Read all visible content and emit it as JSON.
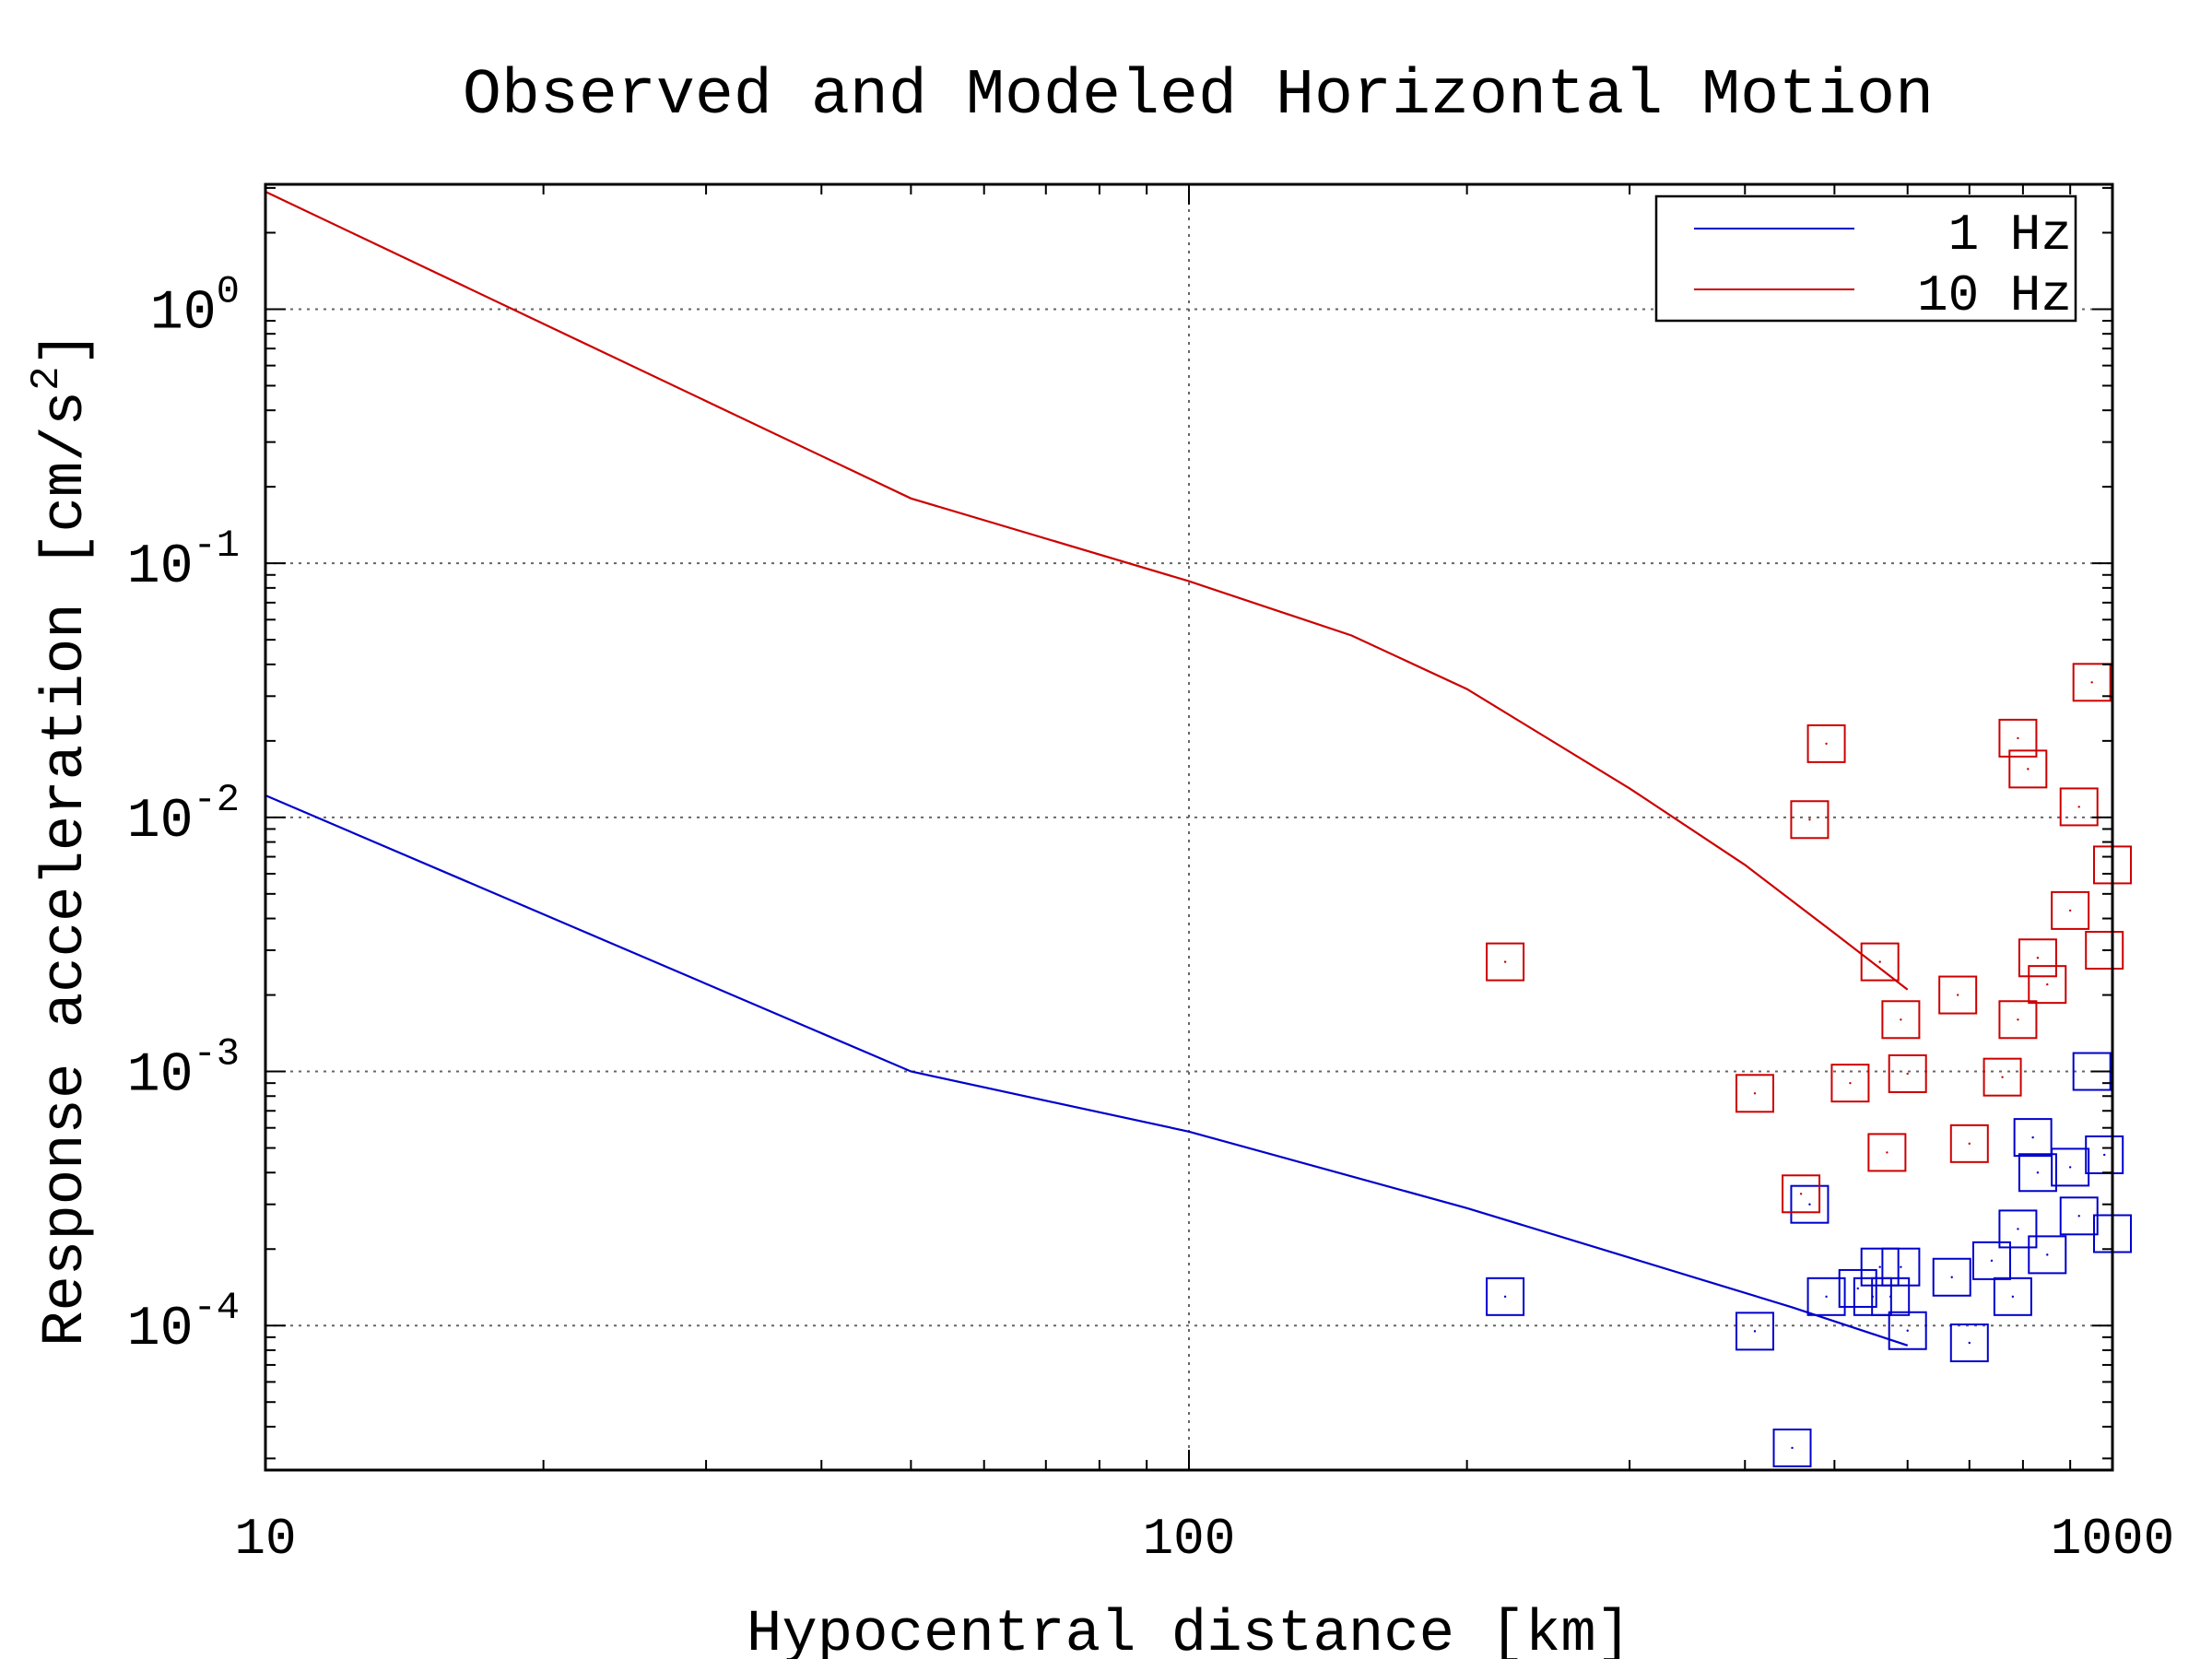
{
  "chart_data": {
    "type": "line",
    "title": "Observed and Modeled Horizontal Motion",
    "xlabel": "Hypocentral distance [km]",
    "ylabel_text": "Response acceleration [cm/s",
    "ylabel_sup": "2",
    "ylabel_close": "]",
    "x_scale": "log",
    "y_scale": "log",
    "xlim": [
      10,
      1000
    ],
    "ylim": [
      2.7e-05,
      3.1
    ],
    "grid": true,
    "legend_placement": "top-right",
    "x_ticks": [
      {
        "value": 10,
        "label": "10"
      },
      {
        "value": 100,
        "label": "100"
      },
      {
        "value": 1000,
        "label": "1000"
      }
    ],
    "y_ticks": [
      {
        "value": 1,
        "base": "10",
        "exp": "0"
      },
      {
        "value": 0.1,
        "base": "10",
        "exp": "-1"
      },
      {
        "value": 0.01,
        "base": "10",
        "exp": "-2"
      },
      {
        "value": 0.001,
        "base": "10",
        "exp": "-3"
      },
      {
        "value": 0.0001,
        "base": "10",
        "exp": "-4"
      }
    ],
    "series": [
      {
        "name": "1 Hz",
        "color": "#0000cc",
        "line": [
          [
            10,
            0.0122
          ],
          [
            50,
            0.001
          ],
          [
            100,
            0.00058
          ],
          [
            200,
            0.00029
          ],
          [
            300,
            0.000185
          ],
          [
            450,
            0.000118
          ],
          [
            600,
            8.35e-05
          ]
        ],
        "observed": [
          [
            220,
            0.00013
          ],
          [
            410,
            9.5e-05
          ],
          [
            450,
            3.3e-05
          ],
          [
            470,
            0.0003
          ],
          [
            490,
            0.00013
          ],
          [
            530,
            0.00014
          ],
          [
            550,
            0.00013
          ],
          [
            560,
            0.00017
          ],
          [
            575,
            0.00013
          ],
          [
            590,
            0.00017
          ],
          [
            600,
            9.55e-05
          ],
          [
            670,
            0.000155
          ],
          [
            700,
            8.55e-05
          ],
          [
            740,
            0.00018
          ],
          [
            780,
            0.00013
          ],
          [
            790,
            0.00024
          ],
          [
            820,
            0.00055
          ],
          [
            830,
            0.0004
          ],
          [
            850,
            0.00019
          ],
          [
            900,
            0.00042
          ],
          [
            920,
            0.00027
          ],
          [
            950,
            0.001
          ],
          [
            980,
            0.00047
          ],
          [
            1000,
            0.00023
          ]
        ]
      },
      {
        "name": "10 Hz",
        "color": "#cc0000",
        "line": [
          [
            10,
            2.9
          ],
          [
            50,
            0.18
          ],
          [
            100,
            0.085
          ],
          [
            150,
            0.052
          ],
          [
            200,
            0.032
          ],
          [
            300,
            0.013
          ],
          [
            400,
            0.0065
          ],
          [
            500,
            0.0035
          ],
          [
            600,
            0.0021
          ]
        ],
        "observed": [
          [
            220,
            0.0027
          ],
          [
            410,
            0.00082
          ],
          [
            460,
            0.00033
          ],
          [
            470,
            0.0098
          ],
          [
            490,
            0.0195
          ],
          [
            520,
            0.0009
          ],
          [
            560,
            0.0027
          ],
          [
            570,
            0.00048
          ],
          [
            590,
            0.0016
          ],
          [
            600,
            0.00098
          ],
          [
            680,
            0.002
          ],
          [
            700,
            0.00052
          ],
          [
            760,
            0.00095
          ],
          [
            790,
            0.0205
          ],
          [
            790,
            0.0016
          ],
          [
            810,
            0.0155
          ],
          [
            830,
            0.0028
          ],
          [
            850,
            0.0022
          ],
          [
            900,
            0.0043
          ],
          [
            920,
            0.011
          ],
          [
            950,
            0.034
          ],
          [
            980,
            0.003
          ],
          [
            1000,
            0.0065
          ]
        ]
      }
    ]
  }
}
